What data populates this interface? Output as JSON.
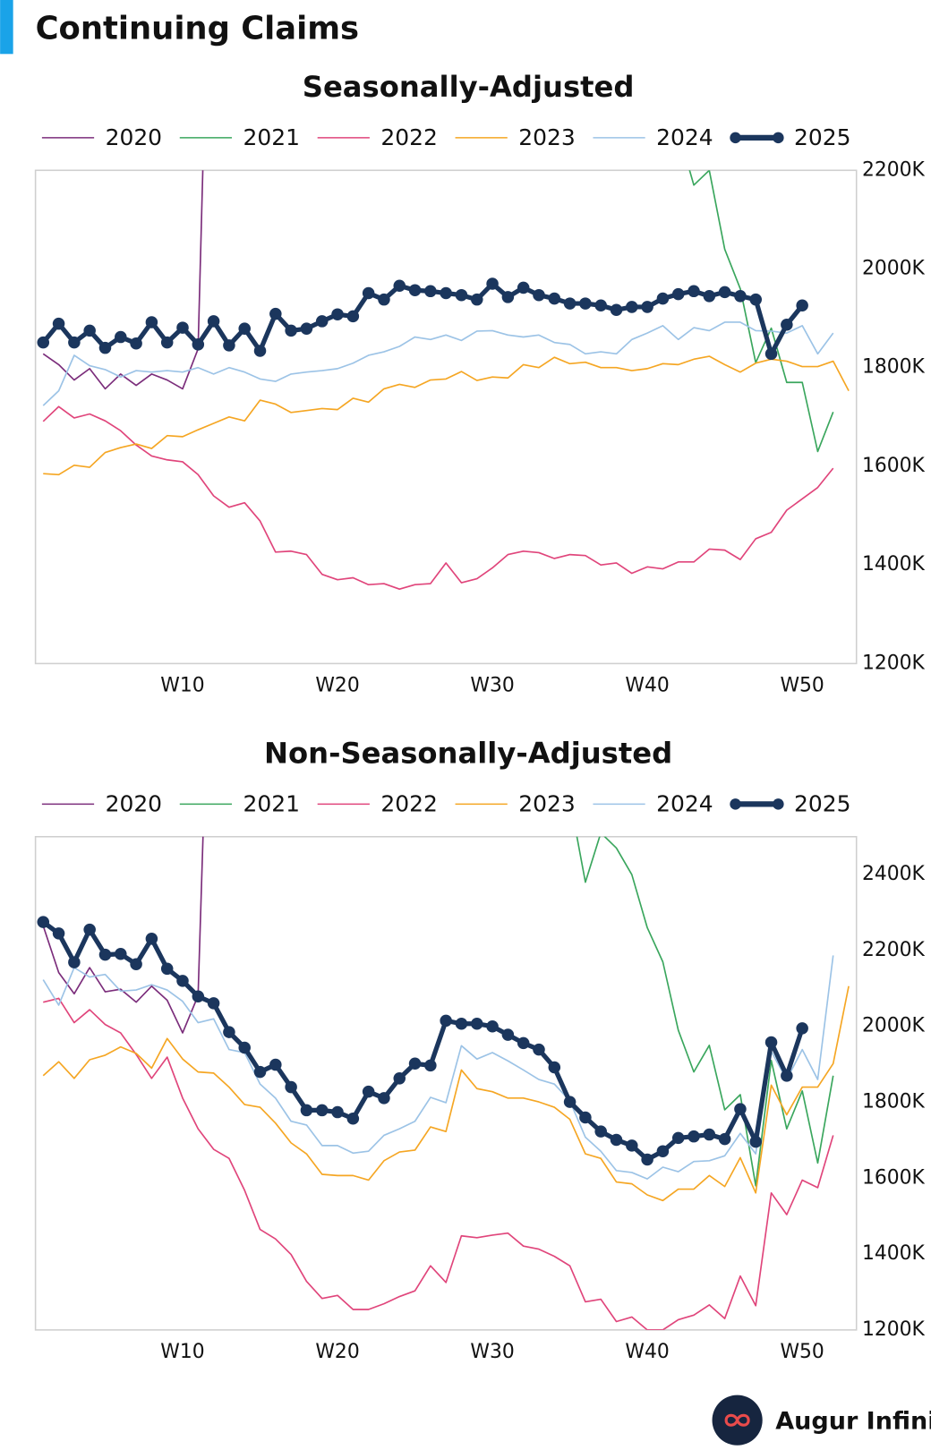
{
  "title": "Continuing Claims",
  "brand": "Augur Infinity",
  "chart_data": [
    {
      "type": "line",
      "title": "Seasonally-Adjusted",
      "x": [
        1,
        2,
        3,
        4,
        5,
        6,
        7,
        8,
        9,
        10,
        11,
        12,
        13,
        14,
        15,
        16,
        17,
        18,
        19,
        20,
        21,
        22,
        23,
        24,
        25,
        26,
        27,
        28,
        29,
        30,
        31,
        32,
        33,
        34,
        35,
        36,
        37,
        38,
        39,
        40,
        41,
        42,
        43,
        44,
        45,
        46,
        47,
        48,
        49,
        50,
        51,
        52,
        53
      ],
      "xlim": [
        0.5,
        53.5
      ],
      "xticks": [
        {
          "value": 10,
          "label": "W10"
        },
        {
          "value": 20,
          "label": "W20"
        },
        {
          "value": 30,
          "label": "W30"
        },
        {
          "value": 40,
          "label": "W40"
        },
        {
          "value": 50,
          "label": "W50"
        }
      ],
      "ylim": [
        1200,
        2200
      ],
      "yticks": [
        {
          "value": 1200,
          "label": "1200K"
        },
        {
          "value": 1400,
          "label": "1400K"
        },
        {
          "value": 1600,
          "label": "1600K"
        },
        {
          "value": 1800,
          "label": "1800K"
        },
        {
          "value": 2000,
          "label": "2000K"
        },
        {
          "value": 2200,
          "label": "2200K"
        }
      ],
      "grid": false,
      "legend": "top",
      "series": [
        {
          "name": "2020",
          "color": "#7b2d7b",
          "values": [
            1828,
            1806,
            1775,
            1798,
            1757,
            1787,
            1764,
            1787,
            1775,
            1757,
            1838,
            3029,
            null,
            null,
            null,
            null,
            null,
            null,
            null,
            null,
            null,
            null,
            null,
            null,
            null,
            null,
            null,
            null,
            null,
            null,
            null,
            null,
            null,
            null,
            null,
            null,
            null,
            null,
            null,
            null,
            null,
            null,
            null,
            null,
            null,
            null,
            null,
            null,
            null,
            null,
            null,
            null,
            null
          ]
        },
        {
          "name": "2021",
          "color": "#3aa65d",
          "values": [
            null,
            null,
            null,
            null,
            null,
            null,
            null,
            null,
            null,
            null,
            null,
            null,
            null,
            null,
            null,
            null,
            null,
            null,
            null,
            null,
            null,
            null,
            null,
            null,
            null,
            null,
            null,
            null,
            null,
            null,
            null,
            null,
            null,
            null,
            null,
            null,
            null,
            null,
            null,
            null,
            null,
            2280,
            2170,
            2200,
            2040,
            1960,
            1810,
            1880,
            1770,
            1770,
            1630,
            1710,
            null
          ]
        },
        {
          "name": "2022",
          "color": "#e0457b",
          "values": [
            1691,
            1721,
            1698,
            1706,
            1692,
            1672,
            1643,
            1621,
            1613,
            1609,
            1583,
            1540,
            1517,
            1526,
            1489,
            1426,
            1428,
            1421,
            1381,
            1370,
            1374,
            1360,
            1362,
            1351,
            1360,
            1362,
            1404,
            1364,
            1372,
            1394,
            1421,
            1428,
            1425,
            1413,
            1421,
            1419,
            1400,
            1404,
            1383,
            1396,
            1392,
            1406,
            1406,
            1432,
            1430,
            1411,
            1453,
            1466,
            1511,
            1534,
            1557,
            1596,
            null
          ]
        },
        {
          "name": "2023",
          "color": "#f5a623",
          "values": [
            1585,
            1583,
            1602,
            1598,
            1628,
            1638,
            1645,
            1636,
            1662,
            1660,
            1674,
            1687,
            1700,
            1692,
            1734,
            1726,
            1709,
            1713,
            1717,
            1715,
            1738,
            1730,
            1757,
            1766,
            1760,
            1775,
            1777,
            1792,
            1774,
            1781,
            1779,
            1806,
            1800,
            1821,
            1808,
            1811,
            1800,
            1800,
            1794,
            1798,
            1808,
            1806,
            1817,
            1823,
            1806,
            1791,
            1809,
            1817,
            1813,
            1802,
            1802,
            1813,
            1753
          ]
        },
        {
          "name": "2024",
          "color": "#9cc3e6",
          "values": [
            1723,
            1753,
            1825,
            1804,
            1796,
            1781,
            1794,
            1791,
            1794,
            1791,
            1800,
            1787,
            1800,
            1791,
            1777,
            1772,
            1787,
            1791,
            1794,
            1798,
            1809,
            1825,
            1832,
            1843,
            1862,
            1857,
            1866,
            1855,
            1874,
            1875,
            1866,
            1862,
            1866,
            1851,
            1847,
            1828,
            1832,
            1828,
            1857,
            1870,
            1885,
            1857,
            1881,
            1875,
            1892,
            1892,
            1875,
            1874,
            1870,
            1885,
            1828,
            1870,
            null
          ]
        },
        {
          "name": "2025",
          "color": "#1b365d",
          "markers": true,
          "values": [
            1851,
            1889,
            1851,
            1875,
            1840,
            1862,
            1849,
            1892,
            1851,
            1881,
            1847,
            1894,
            1845,
            1879,
            1834,
            1909,
            1875,
            1879,
            1894,
            1908,
            1904,
            1951,
            1938,
            1966,
            1957,
            1955,
            1951,
            1947,
            1938,
            1970,
            1943,
            1962,
            1947,
            1940,
            1930,
            1930,
            1926,
            1917,
            1923,
            1923,
            1940,
            1949,
            1955,
            1945,
            1953,
            1945,
            1938,
            1828,
            1887,
            1926,
            null,
            null,
            null
          ]
        }
      ]
    },
    {
      "type": "line",
      "title": "Non-Seasonally-Adjusted",
      "x": [
        1,
        2,
        3,
        4,
        5,
        6,
        7,
        8,
        9,
        10,
        11,
        12,
        13,
        14,
        15,
        16,
        17,
        18,
        19,
        20,
        21,
        22,
        23,
        24,
        25,
        26,
        27,
        28,
        29,
        30,
        31,
        32,
        33,
        34,
        35,
        36,
        37,
        38,
        39,
        40,
        41,
        42,
        43,
        44,
        45,
        46,
        47,
        48,
        49,
        50,
        51,
        52,
        53
      ],
      "xlim": [
        0.5,
        53.5
      ],
      "xticks": [
        {
          "value": 10,
          "label": "W10"
        },
        {
          "value": 20,
          "label": "W20"
        },
        {
          "value": 30,
          "label": "W30"
        },
        {
          "value": 40,
          "label": "W40"
        },
        {
          "value": 50,
          "label": "W50"
        }
      ],
      "ylim": [
        1200,
        2500
      ],
      "yticks": [
        {
          "value": 1200,
          "label": "1200K"
        },
        {
          "value": 1400,
          "label": "1400K"
        },
        {
          "value": 1600,
          "label": "1600K"
        },
        {
          "value": 1800,
          "label": "1800K"
        },
        {
          "value": 2000,
          "label": "2000K"
        },
        {
          "value": 2200,
          "label": "2200K"
        },
        {
          "value": 2400,
          "label": "2400K"
        }
      ],
      "grid": false,
      "legend": "top",
      "series": [
        {
          "name": "2020",
          "color": "#7b2d7b",
          "values": [
            2265,
            2142,
            2086,
            2155,
            2091,
            2098,
            2064,
            2106,
            2069,
            1983,
            2081,
            3400,
            null,
            null,
            null,
            null,
            null,
            null,
            null,
            null,
            null,
            null,
            null,
            null,
            null,
            null,
            null,
            null,
            null,
            null,
            null,
            null,
            null,
            null,
            null,
            null,
            null,
            null,
            null,
            null,
            null,
            null,
            null,
            null,
            null,
            null,
            null,
            null,
            null,
            null,
            null,
            null,
            null
          ]
        },
        {
          "name": "2021",
          "color": "#3aa65d",
          "values": [
            null,
            null,
            null,
            null,
            null,
            null,
            null,
            null,
            null,
            null,
            null,
            null,
            null,
            null,
            null,
            null,
            null,
            null,
            null,
            null,
            null,
            null,
            null,
            null,
            null,
            null,
            null,
            null,
            null,
            null,
            null,
            null,
            null,
            null,
            2600,
            2380,
            2510,
            2470,
            2400,
            2260,
            2170,
            1990,
            1880,
            1950,
            1780,
            1820,
            1580,
            1910,
            1730,
            1830,
            1640,
            1870,
            null
          ]
        },
        {
          "name": "2022",
          "color": "#e0457b",
          "values": [
            2064,
            2074,
            2010,
            2044,
            2005,
            1983,
            1926,
            1863,
            1919,
            1811,
            1730,
            1676,
            1652,
            1568,
            1465,
            1440,
            1399,
            1328,
            1283,
            1291,
            1254,
            1254,
            1269,
            1288,
            1303,
            1369,
            1325,
            1448,
            1443,
            1450,
            1455,
            1421,
            1413,
            1394,
            1369,
            1274,
            1281,
            1222,
            1234,
            1200,
            1200,
            1227,
            1239,
            1266,
            1230,
            1342,
            1264,
            1561,
            1504,
            1595,
            1575,
            1713,
            null
          ]
        },
        {
          "name": "2023",
          "color": "#f5a623",
          "values": [
            1870,
            1907,
            1863,
            1912,
            1924,
            1946,
            1929,
            1890,
            1968,
            1914,
            1880,
            1877,
            1840,
            1794,
            1787,
            1745,
            1693,
            1664,
            1610,
            1607,
            1607,
            1595,
            1646,
            1669,
            1674,
            1735,
            1723,
            1885,
            1836,
            1828,
            1811,
            1811,
            1801,
            1787,
            1755,
            1664,
            1652,
            1590,
            1585,
            1556,
            1541,
            1571,
            1571,
            1607,
            1578,
            1654,
            1561,
            1845,
            1767,
            1840,
            1840,
            1902,
            2106
          ]
        },
        {
          "name": "2024",
          "color": "#9cc3e6",
          "values": [
            2123,
            2056,
            2155,
            2130,
            2137,
            2093,
            2096,
            2110,
            2096,
            2066,
            2010,
            2020,
            1939,
            1931,
            1848,
            1811,
            1750,
            1740,
            1686,
            1686,
            1666,
            1671,
            1713,
            1730,
            1750,
            1813,
            1799,
            1949,
            1914,
            1931,
            1909,
            1885,
            1860,
            1848,
            1804,
            1708,
            1671,
            1620,
            1615,
            1598,
            1629,
            1617,
            1644,
            1646,
            1659,
            1718,
            1664,
            1934,
            1860,
            1939,
            1860,
            2187,
            null
          ]
        },
        {
          "name": "2025",
          "color": "#1b365d",
          "markers": true,
          "values": [
            2275,
            2245,
            2169,
            2255,
            2189,
            2191,
            2164,
            2231,
            2152,
            2120,
            2079,
            2061,
            1985,
            1944,
            1880,
            1899,
            1840,
            1779,
            1779,
            1774,
            1757,
            1828,
            1811,
            1863,
            1902,
            1897,
            2015,
            2007,
            2007,
            2000,
            1978,
            1956,
            1939,
            1892,
            1801,
            1760,
            1723,
            1701,
            1686,
            1649,
            1671,
            1706,
            1710,
            1715,
            1703,
            1782,
            1696,
            1958,
            1870,
            1995,
            null,
            null,
            null
          ]
        }
      ]
    }
  ]
}
